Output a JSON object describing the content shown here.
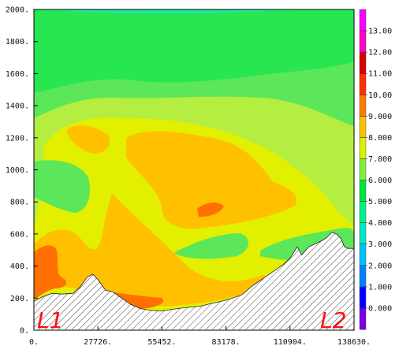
{
  "chart_data": {
    "type": "heatmap",
    "subtype": "filled-contour vertical cross-section",
    "x_ticks": [
      0,
      27726,
      55452,
      83178,
      110904,
      138630
    ],
    "x_tick_labels": [
      "0.",
      "27726.",
      "55452.",
      "83178.",
      "110904.",
      "138630."
    ],
    "y_ticks": [
      0,
      200,
      400,
      600,
      800,
      1000,
      1200,
      1400,
      1600,
      1800,
      2000
    ],
    "y_tick_labels": [
      "0.",
      "200.",
      "400.",
      "600.",
      "800.",
      "1000.",
      "1200.",
      "1400.",
      "1600.",
      "1800.",
      "2000."
    ],
    "xlim": [
      0,
      138630
    ],
    "ylim": [
      0,
      2000
    ],
    "colorbar": {
      "levels": [
        0,
        1,
        2,
        3,
        4,
        5,
        6,
        7,
        8,
        9,
        10,
        11,
        12,
        13
      ],
      "labels": [
        "0.000",
        "1.000",
        "2.000",
        "3.000",
        "4.000",
        "5.000",
        "6.000",
        "7.000",
        "8.000",
        "9.000",
        "10.00",
        "11.00",
        "12.00",
        "13.00"
      ],
      "colors": [
        "#7a00e6",
        "#0000ff",
        "#0080ff",
        "#00c0ff",
        "#00e6c8",
        "#00f08c",
        "#00e63c",
        "#7ef03c",
        "#dcf000",
        "#ffc000",
        "#ff7a00",
        "#ff3000",
        "#d80000",
        "#ff00c8",
        "#ff00ff"
      ]
    },
    "fill_bands": {
      "band_6_7": "#5ce65a",
      "band_7_8": "#b4ee40",
      "band_8_9": "#e2f000",
      "band_9_10": "#ffc000",
      "band_10_11": "#ff7000",
      "band_5_6": "#28e650",
      "band_4_5": "#20e6a0",
      "terrain_hatch": "#333333"
    },
    "terrain": [
      [
        0,
        180
      ],
      [
        4000,
        210
      ],
      [
        8000,
        230
      ],
      [
        12000,
        225
      ],
      [
        17000,
        230
      ],
      [
        20000,
        270
      ],
      [
        23000,
        330
      ],
      [
        25500,
        350
      ],
      [
        28000,
        310
      ],
      [
        31000,
        250
      ],
      [
        34000,
        240
      ],
      [
        38000,
        200
      ],
      [
        42000,
        160
      ],
      [
        46000,
        135
      ],
      [
        50000,
        125
      ],
      [
        55000,
        120
      ],
      [
        60000,
        130
      ],
      [
        65000,
        140
      ],
      [
        72000,
        150
      ],
      [
        78000,
        170
      ],
      [
        84000,
        190
      ],
      [
        90000,
        220
      ],
      [
        95000,
        280
      ],
      [
        100000,
        330
      ],
      [
        104000,
        370
      ],
      [
        108000,
        410
      ],
      [
        111000,
        450
      ],
      [
        114000,
        520
      ],
      [
        116000,
        470
      ],
      [
        119000,
        520
      ],
      [
        122000,
        540
      ],
      [
        125000,
        560
      ],
      [
        127000,
        580
      ],
      [
        129000,
        610
      ],
      [
        131000,
        600
      ],
      [
        133000,
        570
      ],
      [
        134500,
        520
      ],
      [
        136000,
        510
      ]
    ],
    "annotations": [
      "L1",
      "L2"
    ]
  }
}
